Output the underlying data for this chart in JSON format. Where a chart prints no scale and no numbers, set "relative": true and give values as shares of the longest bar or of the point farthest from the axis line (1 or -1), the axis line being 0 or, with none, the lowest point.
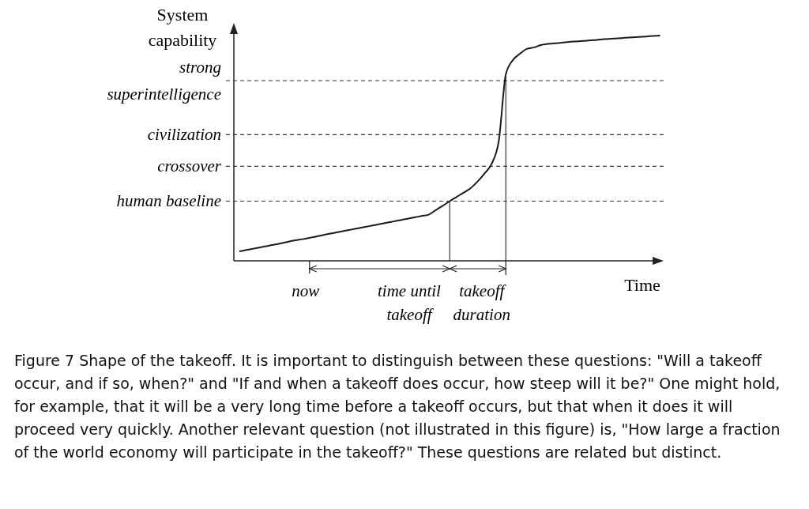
{
  "chart_data": {
    "type": "line",
    "relative": true,
    "xlabel": "Time",
    "ylabel": "System capability",
    "categories": [
      null,
      null,
      null,
      null,
      null,
      null,
      null,
      null,
      null,
      null,
      null,
      null,
      null,
      null,
      null,
      null,
      null,
      null,
      null,
      null,
      null,
      null,
      null,
      null,
      null,
      null,
      null,
      null,
      null,
      null,
      null,
      null,
      null,
      null,
      null,
      null,
      null,
      null,
      null,
      null,
      null,
      null,
      null,
      null,
      null,
      null,
      null,
      null,
      null,
      null,
      null,
      null,
      null,
      null,
      null,
      null,
      null,
      null,
      null,
      null,
      null
    ],
    "series": [
      {
        "color": "#1a1a1a",
        "values": [
          0.042,
          0.048,
          0.054,
          0.06,
          0.066,
          0.072,
          0.078,
          0.085,
          0.091,
          0.096,
          0.102,
          0.108,
          0.115,
          0.121,
          0.127,
          0.133,
          0.139,
          0.145,
          0.151,
          0.157,
          0.163,
          0.169,
          0.175,
          0.181,
          0.187,
          0.193,
          0.199,
          0.205,
          0.225,
          0.244,
          0.265,
          0.284,
          0.303,
          0.323,
          0.353,
          0.389,
          0.432,
          0.533,
          0.828,
          0.891,
          0.919,
          0.941,
          0.947,
          0.958,
          0.963,
          0.966,
          0.968,
          0.972,
          0.974,
          0.976,
          0.979,
          0.981,
          0.984,
          0.986,
          0.988,
          0.99,
          0.992,
          0.994,
          0.996,
          0.998,
          1
        ]
      }
    ],
    "ref_lines": [
      {
        "axis": "y",
        "value": 0.8,
        "label": "strong superintelligence",
        "line_style": "dashed"
      },
      {
        "axis": "y",
        "value": 0.56,
        "label": "civilization",
        "line_style": "dashed"
      },
      {
        "axis": "y",
        "value": 0.42,
        "label": "crossover",
        "line_style": "dashed"
      },
      {
        "axis": "y",
        "value": 0.265,
        "label": "human baseline",
        "line_style": "dashed"
      }
    ],
    "annotations": [
      "now",
      "time until takeoff",
      "takeoff duration",
      "Figure 7 Shape of the takeoff. It is important to distinguish between these questions: \"Will a takeoff occur, and if so, when?\" and \"If and when a takeoff does occur, how steep will it be?\" One might hold, for example, that it will be a very long time before a takeoff occurs, but that when it does it will proceed very quickly. Another relevant question (not illustrated in this figure) is, \"How large a fraction of the world economy will participate in the takeoff?\" These questions are related but distinct."
    ],
    "marker": "none",
    "line_style": "solid"
  }
}
